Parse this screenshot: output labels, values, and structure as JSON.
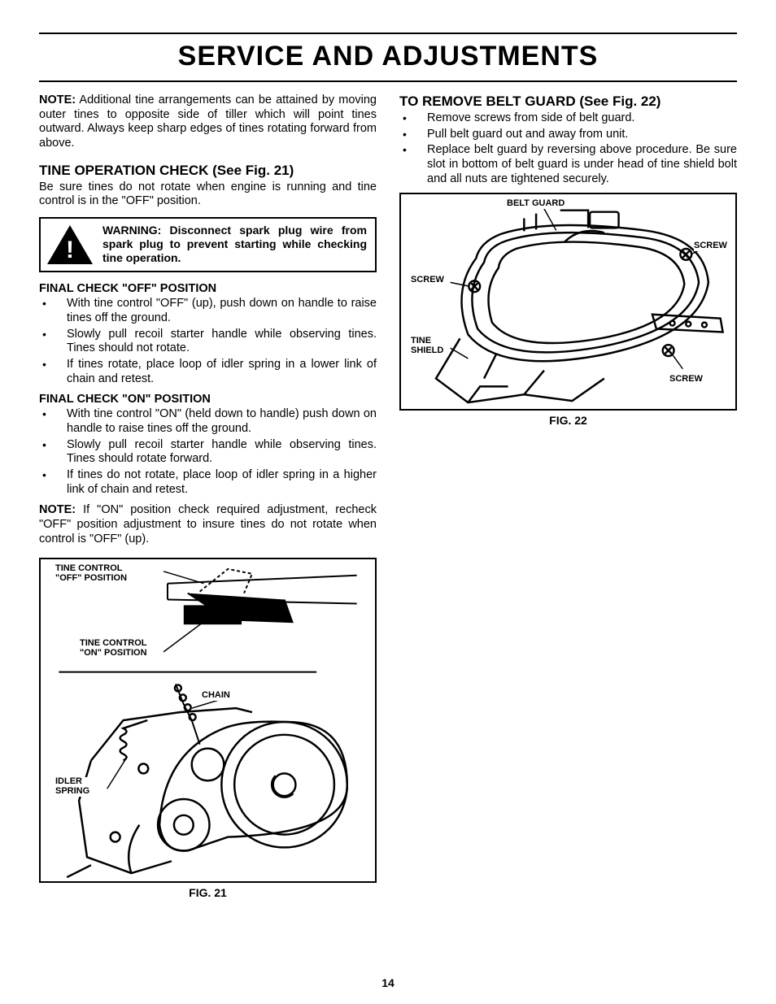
{
  "page": {
    "title": "SERVICE AND ADJUSTMENTS",
    "number": "14"
  },
  "left": {
    "note_label": "NOTE:",
    "note_text": "  Additional tine arrangements can be attained by moving outer tines to opposite side of tiller which will point tines outward.  Always keep sharp edges of tines rotating forward from above.",
    "sec1_head": "TINE OPERATION CHECK (See Fig. 21)",
    "sec1_body": "Be sure tines do not rotate when engine is running and tine control is in the \"OFF\" position.",
    "warning": "WARNING: Disconnect spark plug wire from spark plug to prevent starting while checking tine operation.",
    "off_head": "FINAL CHECK \"OFF\" POSITION",
    "off_items": [
      "With tine control \"OFF\" (up), push down on handle to raise tines off the ground.",
      "Slowly pull recoil starter handle while observing tines. Tines should not  rotate.",
      "If tines rotate, place loop of idler spring in a lower link of chain and retest."
    ],
    "on_head": "FINAL CHECK \"ON\" POSITION",
    "on_items": [
      "With tine control \"ON\" (held down to handle) push down on handle to raise tines off the ground.",
      "Slowly pull recoil starter handle while observing tines. Tines should rotate forward.",
      "If tines do not rotate, place loop of idler spring in a higher link of chain and retest."
    ],
    "note2_label": "NOTE:",
    "note2_text": " If \"ON\" position check required adjustment, recheck \"OFF\" position adjustment to insure tines do not rotate when control is \"OFF\" (up).",
    "fig21_caption": "FIG. 21",
    "fig21_labels": {
      "off_pos": "TINE CONTROL\n\"OFF\" POSITION",
      "on_pos": "TINE CONTROL\n\"ON\" POSITION",
      "chain": "CHAIN",
      "idler": "IDLER\nSPRING"
    }
  },
  "right": {
    "sec_head": "TO REMOVE BELT GUARD (See Fig. 22)",
    "items": [
      "Remove screws from side of belt guard.",
      "Pull belt guard out and away from unit.",
      "Replace belt guard by reversing above procedure.  Be sure slot in bottom of belt guard is under head of tine shield bolt and all nuts are tightened securely."
    ],
    "fig22_caption": "FIG. 22",
    "fig22_labels": {
      "belt": "BELT GUARD",
      "screw": "SCREW",
      "tine_shield": "TINE\nSHIELD"
    }
  }
}
